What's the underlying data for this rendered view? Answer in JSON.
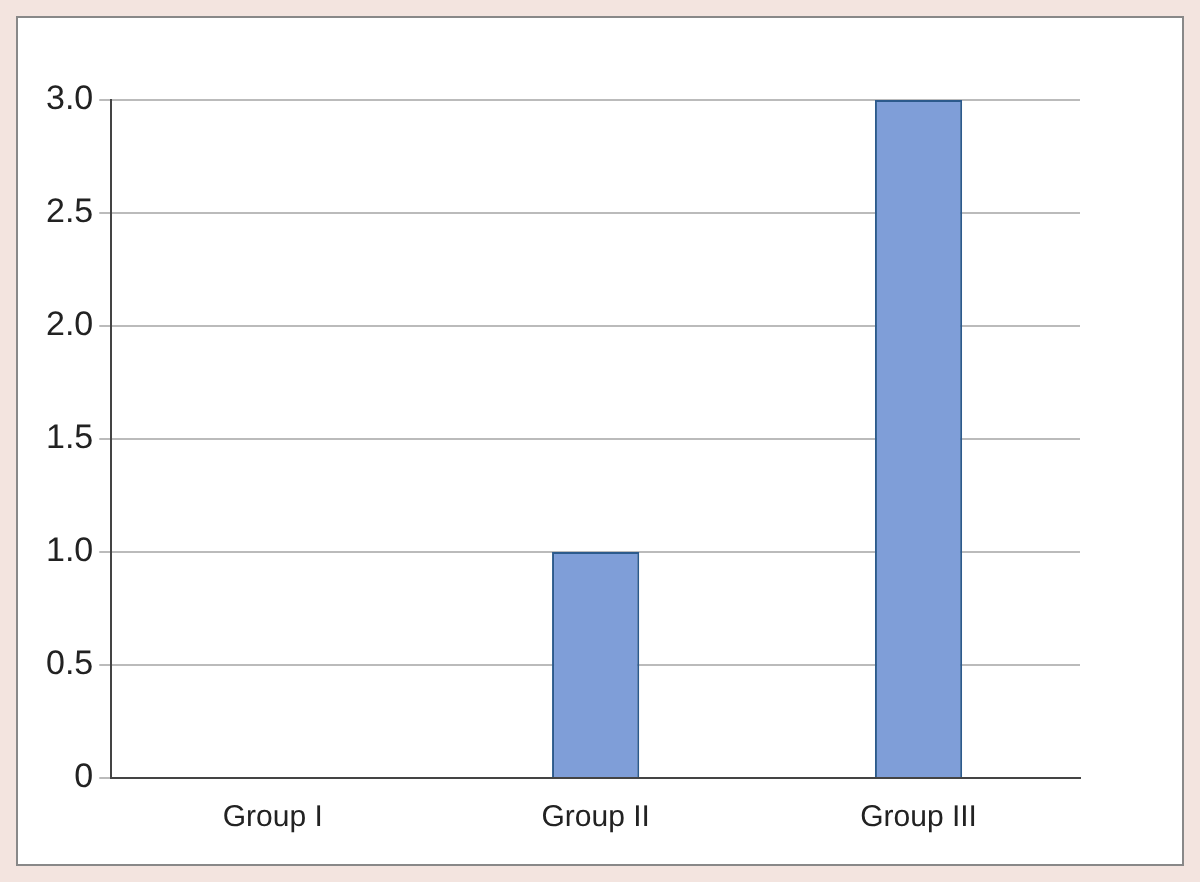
{
  "chart_data": {
    "type": "bar",
    "categories": [
      "Group I",
      "Group II",
      "Group III"
    ],
    "values": [
      0,
      1.0,
      3.0
    ],
    "color": "#7f9ed8",
    "ylim": [
      0,
      3
    ],
    "yticks": [
      0,
      {
        "value": 0.5,
        "label": "0.5"
      },
      {
        "value": 1,
        "label": "1.0"
      },
      {
        "value": 1.5,
        "label": "1.5"
      },
      {
        "value": 2,
        "label": "2.0"
      },
      {
        "value": 2.5,
        "label": "2.5"
      },
      {
        "value": 3,
        "label": "3.0"
      }
    ],
    "grid": "y",
    "legend": false
  }
}
